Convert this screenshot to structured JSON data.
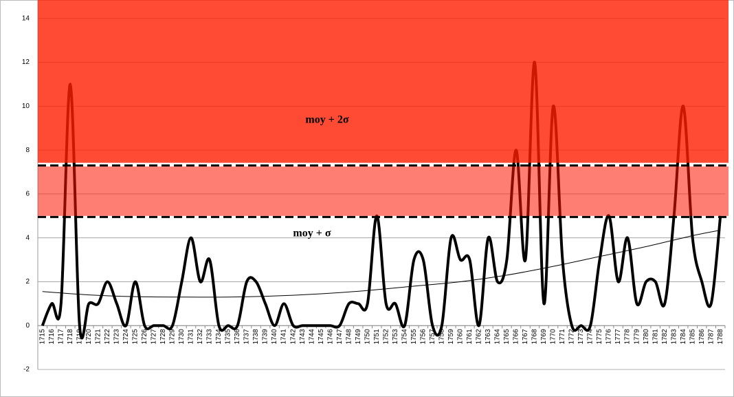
{
  "chart_data": {
    "type": "line",
    "x": [
      1715,
      1716,
      1717,
      1718,
      1719,
      1720,
      1721,
      1722,
      1723,
      1724,
      1725,
      1726,
      1727,
      1728,
      1729,
      1730,
      1731,
      1732,
      1733,
      1734,
      1735,
      1736,
      1737,
      1738,
      1739,
      1740,
      1741,
      1742,
      1743,
      1744,
      1745,
      1746,
      1747,
      1748,
      1749,
      1750,
      1751,
      1752,
      1753,
      1754,
      1755,
      1756,
      1757,
      1758,
      1759,
      1760,
      1761,
      1762,
      1763,
      1764,
      1765,
      1766,
      1767,
      1768,
      1769,
      1770,
      1771,
      1772,
      1773,
      1774,
      1775,
      1776,
      1777,
      1778,
      1779,
      1780,
      1781,
      1782,
      1783,
      1784,
      1785,
      1786,
      1787,
      1788
    ],
    "series": [
      {
        "color": "#000000",
        "values": [
          0,
          1,
          1,
          11,
          0,
          1,
          1,
          2,
          1,
          0,
          2,
          0,
          0,
          0,
          0,
          2,
          4,
          2,
          3,
          0,
          0,
          0,
          2,
          2,
          1,
          0,
          1,
          0,
          0,
          0,
          0,
          0,
          0,
          1,
          1,
          1,
          5,
          1,
          1,
          0,
          3,
          3,
          0,
          0,
          4,
          3,
          3,
          0,
          4,
          2,
          3,
          8,
          3,
          12,
          1,
          10,
          3,
          0,
          0,
          0,
          3,
          5,
          2,
          4,
          1,
          2,
          2,
          1,
          5,
          10,
          4,
          2,
          1,
          5
        ]
      }
    ],
    "trend": {
      "color": "#000000",
      "x": [
        1715,
        1720,
        1725,
        1730,
        1735,
        1740,
        1745,
        1750,
        1755,
        1760,
        1765,
        1770,
        1775,
        1780,
        1785,
        1788
      ],
      "values": [
        1.55,
        1.4,
        1.32,
        1.3,
        1.3,
        1.35,
        1.45,
        1.6,
        1.8,
        2.0,
        2.3,
        2.7,
        3.15,
        3.6,
        4.1,
        4.35
      ]
    },
    "bands": [
      {
        "from": 5.0,
        "to": 7.25,
        "color": "#ff1400"
      },
      {
        "from": 7.42,
        "to": 14.84,
        "color": "#ff1e00"
      }
    ],
    "thresholds": [
      4.95,
      7.3
    ],
    "annotations": [
      {
        "text": "moy + 2σ"
      },
      {
        "text": "moy + σ"
      }
    ],
    "ylim": [
      -2,
      14.84
    ],
    "yticks": [
      -2,
      0,
      2,
      4,
      6,
      8,
      10,
      12,
      14
    ],
    "grid": true
  }
}
